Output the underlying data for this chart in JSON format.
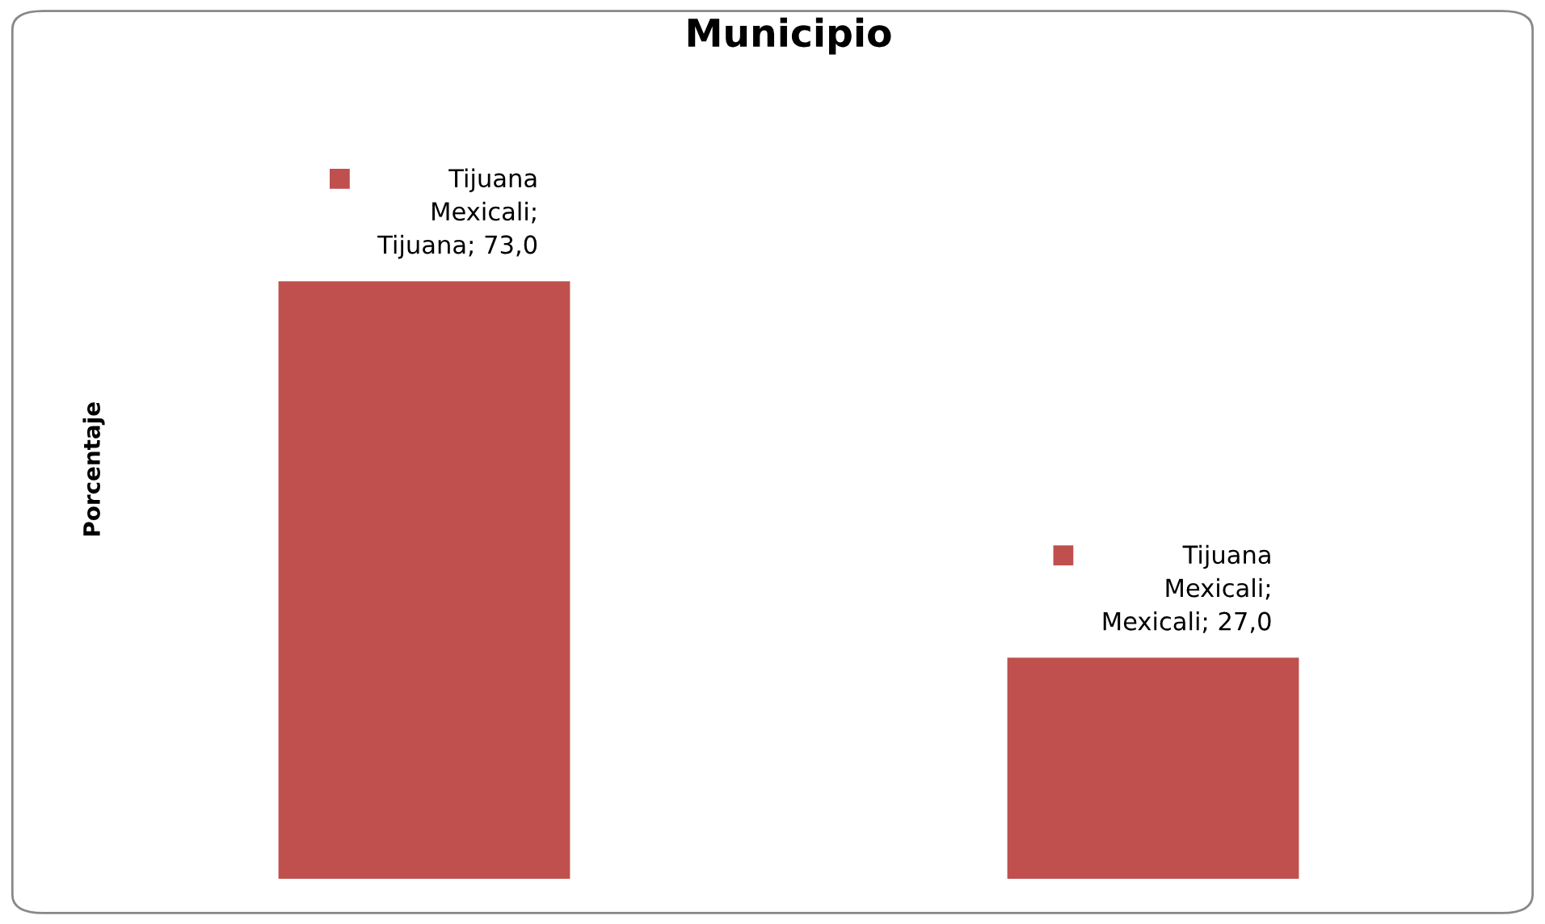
{
  "chart_data": {
    "type": "bar",
    "title": "Municipio",
    "ylabel": "Porcentaje",
    "categories": [
      null,
      null
    ],
    "values": [
      73.0,
      27.0
    ],
    "color": "#c0504d",
    "value_labels": [
      "Tijuana\nMexicali;\nTijuana; 73,0",
      "Tijuana\nMexicali;\nMexicali; 27,0"
    ],
    "tick_labels": false,
    "grid": false,
    "legend": false
  }
}
